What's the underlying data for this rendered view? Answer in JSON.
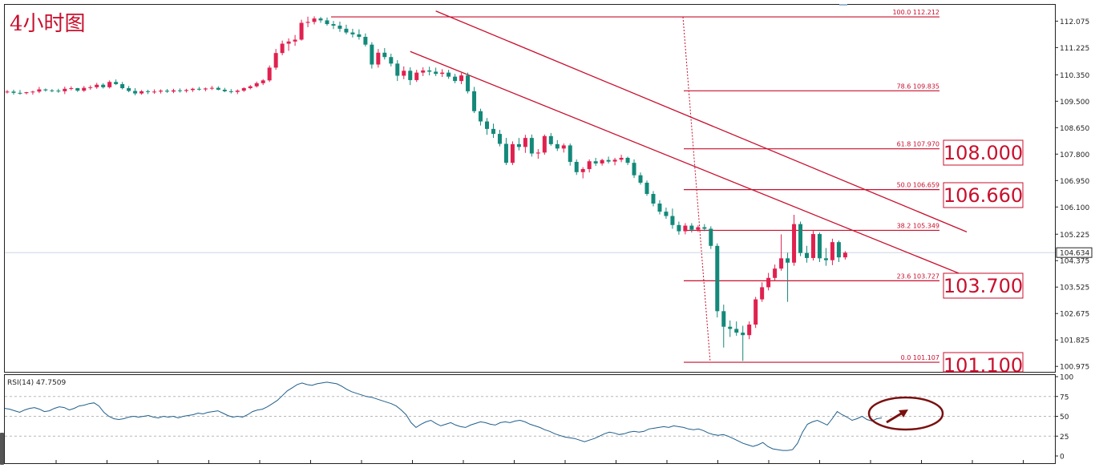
{
  "colors": {
    "bull": "#e0214f",
    "bear": "#13897a",
    "annotation": "#c8102e",
    "rsi_line": "#1f5f8b",
    "circle": "#7a1010",
    "axis": "#222222"
  },
  "chart_data": [
    {
      "type": "candlestick",
      "title": "4小时图",
      "ylim": [
        100.8,
        112.6
      ],
      "y_ticks": [
        "112.075",
        "111.225",
        "110.350",
        "109.500",
        "108.650",
        "107.800",
        "106.950",
        "106.100",
        "105.225",
        "104.375",
        "103.525",
        "102.675",
        "101.825",
        "100.975"
      ],
      "current_price": "104.634",
      "channel_lines": [
        {
          "name": "channel-upper",
          "from": {
            "index": 67,
            "price": 112.4
          },
          "to": {
            "index": 150,
            "price": 105.3
          }
        },
        {
          "name": "channel-lower",
          "from": {
            "index": 63,
            "price": 111.1
          },
          "to": {
            "index": 152,
            "price": 103.7
          }
        }
      ],
      "fibonacci": [
        {
          "ratio": "100.0",
          "price": "112.212"
        },
        {
          "ratio": "78.6",
          "price": "109.835"
        },
        {
          "ratio": "61.8",
          "price": "107.970"
        },
        {
          "ratio": "50.0",
          "price": "106.659"
        },
        {
          "ratio": "38.2",
          "price": "105.349"
        },
        {
          "ratio": "23.6",
          "price": "103.727"
        },
        {
          "ratio": "0.0",
          "price": "101.107"
        }
      ],
      "key_levels": [
        "108.000",
        "106.660",
        "103.700",
        "101.100"
      ],
      "candles": [
        [
          109.79,
          109.86,
          109.75,
          109.81
        ],
        [
          109.81,
          109.87,
          109.71,
          109.77
        ],
        [
          109.77,
          109.86,
          109.71,
          109.76
        ],
        [
          109.76,
          109.8,
          109.72,
          109.79
        ],
        [
          109.79,
          109.84,
          109.71,
          109.81
        ],
        [
          109.81,
          109.96,
          109.76,
          109.88
        ],
        [
          109.88,
          109.91,
          109.81,
          109.85
        ],
        [
          109.85,
          109.89,
          109.79,
          109.84
        ],
        [
          109.84,
          109.9,
          109.77,
          109.82
        ],
        [
          109.82,
          109.97,
          109.73,
          109.9
        ],
        [
          109.9,
          109.98,
          109.85,
          109.92
        ],
        [
          109.92,
          109.93,
          109.8,
          109.84
        ],
        [
          109.84,
          109.99,
          109.8,
          109.93
        ],
        [
          109.93,
          110.01,
          109.87,
          109.95
        ],
        [
          109.95,
          110.09,
          109.9,
          110.03
        ],
        [
          110.03,
          110.08,
          109.91,
          109.95
        ],
        [
          109.95,
          110.17,
          109.91,
          110.12
        ],
        [
          110.12,
          110.2,
          110.02,
          110.05
        ],
        [
          110.05,
          110.12,
          109.88,
          109.92
        ],
        [
          109.92,
          109.99,
          109.79,
          109.83
        ],
        [
          109.83,
          109.92,
          109.69,
          109.75
        ],
        [
          109.75,
          109.86,
          109.71,
          109.82
        ],
        [
          109.82,
          109.87,
          109.73,
          109.8
        ],
        [
          109.8,
          109.88,
          109.74,
          109.81
        ],
        [
          109.81,
          109.88,
          109.75,
          109.84
        ],
        [
          109.84,
          109.89,
          109.77,
          109.81
        ],
        [
          109.81,
          109.9,
          109.76,
          109.85
        ],
        [
          109.85,
          109.91,
          109.78,
          109.83
        ],
        [
          109.83,
          109.9,
          109.78,
          109.86
        ],
        [
          109.86,
          109.93,
          109.8,
          109.9
        ],
        [
          109.9,
          109.96,
          109.84,
          109.88
        ],
        [
          109.88,
          109.94,
          109.82,
          109.91
        ],
        [
          109.91,
          109.99,
          109.86,
          109.93
        ],
        [
          109.93,
          109.98,
          109.85,
          109.87
        ],
        [
          109.87,
          109.93,
          109.79,
          109.82
        ],
        [
          109.82,
          109.89,
          109.75,
          109.8
        ],
        [
          109.8,
          109.88,
          109.73,
          109.84
        ],
        [
          109.84,
          109.95,
          109.8,
          109.92
        ],
        [
          109.92,
          110.02,
          109.88,
          109.98
        ],
        [
          109.98,
          110.13,
          109.94,
          110.08
        ],
        [
          110.08,
          110.21,
          110.02,
          110.17
        ],
        [
          110.17,
          110.65,
          110.12,
          110.58
        ],
        [
          110.58,
          111.18,
          110.51,
          111.05
        ],
        [
          111.05,
          111.45,
          110.98,
          111.35
        ],
        [
          111.35,
          111.52,
          111.12,
          111.42
        ],
        [
          111.42,
          111.63,
          111.28,
          111.48
        ],
        [
          111.48,
          112.12,
          111.45,
          112.02
        ],
        [
          112.02,
          112.22,
          111.88,
          112.05
        ],
        [
          112.05,
          112.23,
          111.97,
          112.16
        ],
        [
          112.16,
          112.21,
          112.02,
          112.1
        ],
        [
          112.1,
          112.19,
          111.93,
          111.98
        ],
        [
          111.98,
          112.08,
          111.82,
          111.93
        ],
        [
          111.93,
          112.06,
          111.73,
          111.83
        ],
        [
          111.83,
          111.96,
          111.65,
          111.71
        ],
        [
          111.71,
          111.83,
          111.55,
          111.65
        ],
        [
          111.65,
          111.81,
          111.48,
          111.57
        ],
        [
          111.57,
          111.68,
          111.26,
          111.32
        ],
        [
          111.32,
          111.4,
          110.55,
          110.68
        ],
        [
          110.68,
          111.18,
          110.58,
          111.06
        ],
        [
          111.06,
          111.21,
          110.84,
          110.92
        ],
        [
          110.92,
          111.03,
          110.62,
          110.71
        ],
        [
          110.71,
          110.82,
          110.15,
          110.32
        ],
        [
          110.32,
          110.62,
          110.21,
          110.48
        ],
        [
          110.48,
          110.59,
          110.02,
          110.18
        ],
        [
          110.18,
          110.51,
          110.12,
          110.42
        ],
        [
          110.42,
          110.59,
          110.31,
          110.49
        ],
        [
          110.49,
          110.61,
          110.33,
          110.45
        ],
        [
          110.45,
          110.58,
          110.31,
          110.38
        ],
        [
          110.38,
          110.53,
          110.28,
          110.42
        ],
        [
          110.42,
          110.51,
          110.22,
          110.29
        ],
        [
          110.29,
          110.38,
          110.08,
          110.15
        ],
        [
          110.15,
          110.41,
          110.05,
          110.33
        ],
        [
          110.33,
          110.42,
          109.75,
          109.82
        ],
        [
          109.82,
          109.96,
          109.12,
          109.18
        ],
        [
          109.18,
          109.26,
          108.72,
          108.85
        ],
        [
          108.85,
          108.96,
          108.42,
          108.61
        ],
        [
          108.61,
          108.78,
          108.32,
          108.45
        ],
        [
          108.45,
          108.58,
          108.05,
          108.13
        ],
        [
          108.13,
          108.32,
          107.45,
          107.52
        ],
        [
          107.52,
          108.21,
          107.45,
          108.12
        ],
        [
          108.12,
          108.32,
          107.92,
          108.03
        ],
        [
          108.03,
          108.42,
          107.84,
          108.32
        ],
        [
          108.32,
          108.43,
          107.72,
          107.82
        ],
        [
          107.82,
          107.96,
          107.65,
          107.85
        ],
        [
          107.85,
          108.43,
          107.78,
          108.38
        ],
        [
          108.38,
          108.48,
          108.07,
          108.12
        ],
        [
          108.12,
          108.25,
          107.9,
          107.98
        ],
        [
          107.98,
          108.14,
          107.85,
          108.08
        ],
        [
          108.08,
          108.14,
          107.43,
          107.55
        ],
        [
          107.55,
          107.63,
          107.13,
          107.22
        ],
        [
          107.22,
          107.38,
          107.02,
          107.32
        ],
        [
          107.32,
          107.63,
          107.21,
          107.57
        ],
        [
          107.57,
          107.68,
          107.42,
          107.5
        ],
        [
          107.5,
          107.65,
          107.43,
          107.61
        ],
        [
          107.61,
          107.72,
          107.5,
          107.56
        ],
        [
          107.56,
          107.68,
          107.44,
          107.62
        ],
        [
          107.62,
          107.78,
          107.54,
          107.68
        ],
        [
          107.68,
          107.72,
          107.45,
          107.52
        ],
        [
          107.52,
          107.63,
          107.03,
          107.12
        ],
        [
          107.12,
          107.21,
          106.82,
          106.88
        ],
        [
          106.88,
          106.95,
          106.46,
          106.52
        ],
        [
          106.52,
          106.61,
          106.12,
          106.21
        ],
        [
          106.21,
          106.32,
          105.86,
          105.95
        ],
        [
          105.95,
          106.08,
          105.72,
          105.81
        ],
        [
          105.81,
          106.05,
          105.4,
          105.52
        ],
        [
          105.52,
          105.63,
          105.21,
          105.32
        ],
        [
          105.32,
          105.58,
          105.22,
          105.5
        ],
        [
          105.5,
          105.58,
          105.28,
          105.37
        ],
        [
          105.37,
          105.51,
          105.3,
          105.45
        ],
        [
          105.45,
          105.55,
          105.32,
          105.4
        ],
        [
          105.4,
          105.48,
          104.75,
          104.85
        ],
        [
          104.85,
          104.93,
          102.55,
          102.75
        ],
        [
          102.75,
          102.96,
          101.58,
          102.25
        ],
        [
          102.25,
          102.45,
          101.92,
          102.18
        ],
        [
          102.18,
          102.42,
          101.96,
          102.06
        ],
        [
          102.06,
          102.28,
          101.15,
          101.98
        ],
        [
          101.98,
          102.42,
          101.85,
          102.32
        ],
        [
          102.32,
          103.21,
          102.21,
          103.13
        ],
        [
          103.13,
          103.68,
          103.05,
          103.52
        ],
        [
          103.52,
          103.98,
          103.42,
          103.82
        ],
        [
          103.82,
          104.25,
          103.71,
          104.12
        ],
        [
          104.12,
          105.22,
          104.05,
          104.45
        ],
        [
          104.45,
          104.63,
          103.05,
          104.31
        ],
        [
          104.31,
          105.85,
          104.21,
          105.55
        ],
        [
          105.55,
          105.63,
          104.52,
          104.62
        ],
        [
          104.62,
          104.85,
          104.31,
          104.46
        ],
        [
          104.46,
          105.33,
          104.38,
          105.23
        ],
        [
          105.23,
          105.28,
          104.33,
          104.45
        ],
        [
          104.45,
          104.78,
          104.21,
          104.39
        ],
        [
          104.39,
          105.08,
          104.23,
          104.97
        ],
        [
          104.97,
          105.02,
          104.33,
          104.48
        ],
        [
          104.48,
          104.68,
          104.41,
          104.63
        ]
      ]
    },
    {
      "type": "line",
      "title": "RSI(14) 47.7509",
      "ylim": [
        0,
        100
      ],
      "y_ticks": [
        "100",
        "75",
        "50",
        "25",
        "0"
      ],
      "annotation": "arrow inside ellipse pointing up-right",
      "series": [
        {
          "values": [
            60,
            59,
            57,
            55,
            58,
            60,
            61,
            59,
            56,
            57,
            60,
            62,
            61,
            58,
            60,
            63,
            64,
            66,
            67,
            63,
            55,
            50,
            47,
            46,
            47,
            49,
            50,
            49,
            50,
            51,
            49,
            48,
            50,
            49,
            50,
            48,
            50,
            51,
            52,
            54,
            53,
            55,
            56,
            57,
            54,
            51,
            49,
            50,
            49,
            52,
            56,
            58,
            59,
            62,
            66,
            70,
            76,
            82,
            86,
            90,
            92,
            90,
            89,
            91,
            92,
            93,
            92,
            91,
            88,
            84,
            81,
            79,
            77,
            75,
            74,
            72,
            70,
            68,
            66,
            63,
            58,
            52,
            42,
            36,
            40,
            43,
            45,
            41,
            38,
            40,
            42,
            39,
            37,
            36,
            39,
            41,
            43,
            42,
            40,
            39,
            42,
            43,
            42,
            44,
            45,
            43,
            40,
            38,
            36,
            33,
            31,
            28,
            26,
            24,
            23,
            22,
            20,
            18,
            20,
            22,
            25,
            28,
            30,
            29,
            27,
            28,
            30,
            31,
            30,
            31,
            34,
            35,
            36,
            37,
            36,
            38,
            37,
            36,
            34,
            33,
            34,
            32,
            29,
            27,
            26,
            27,
            25,
            22,
            19,
            16,
            14,
            12,
            14,
            17,
            12,
            9,
            8,
            7,
            7,
            8,
            16,
            30,
            40,
            43,
            45,
            42,
            39,
            47,
            56,
            52,
            49,
            45,
            47,
            50,
            46,
            44,
            47,
            48
          ]
        }
      ]
    }
  ]
}
